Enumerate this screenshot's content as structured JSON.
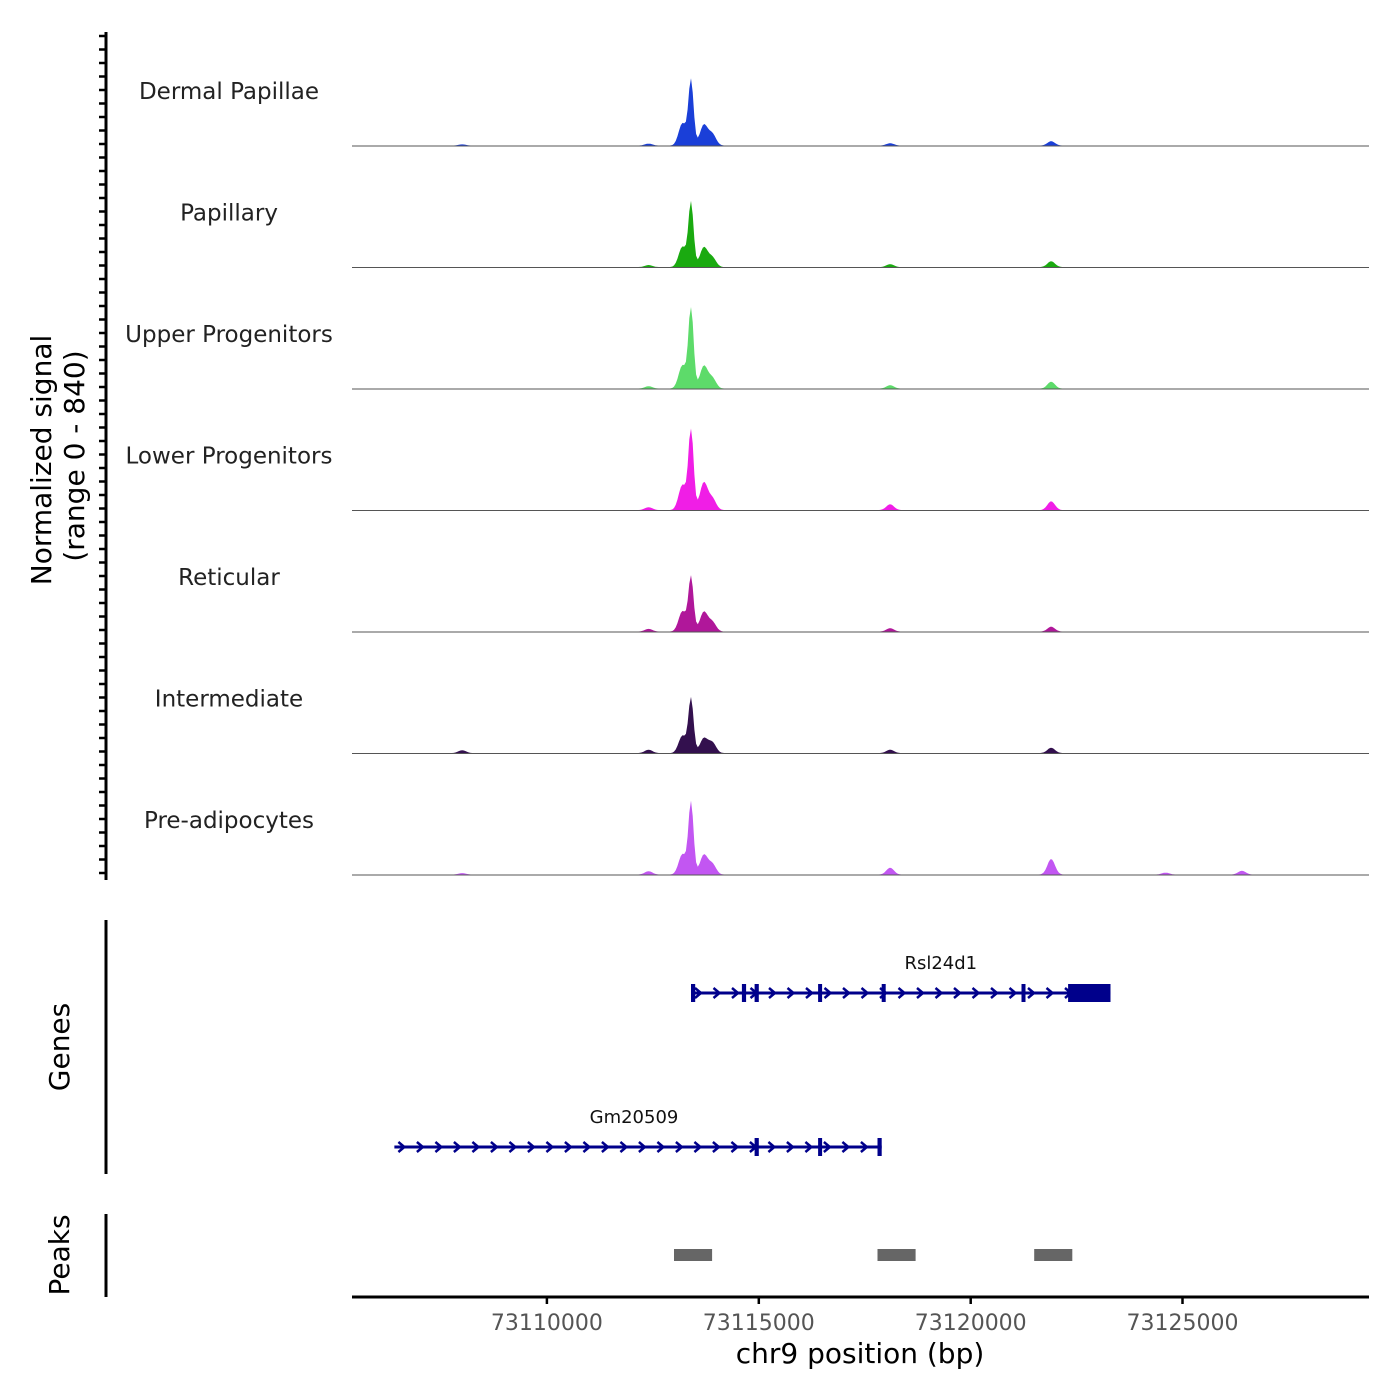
{
  "chart_data": {
    "type": "area",
    "ylabel": "Normalized signal",
    "ylabel_range": "(range 0 - 840)",
    "ylim": [
      0,
      840
    ],
    "xlabel": "chr9 position (bp)",
    "xlim": [
      73105400,
      73129400
    ],
    "xticks": [
      73110000,
      73115000,
      73120000,
      73125000
    ],
    "xtick_labels": [
      "73110000",
      "73115000",
      "73120000",
      "73125000"
    ],
    "tracks": [
      {
        "name": "Dermal Papillae",
        "color": "#1a3fd8",
        "peaks": [
          [
            73113400,
            670
          ],
          [
            73113700,
            210
          ],
          [
            73113200,
            230
          ],
          [
            73113900,
            120
          ],
          [
            73118100,
            25
          ],
          [
            73121900,
            45
          ],
          [
            73108000,
            12
          ],
          [
            73112400,
            20
          ]
        ]
      },
      {
        "name": "Papillary",
        "color": "#1aaa10",
        "peaks": [
          [
            73113400,
            660
          ],
          [
            73113700,
            200
          ],
          [
            73113200,
            210
          ],
          [
            73113900,
            100
          ],
          [
            73118100,
            30
          ],
          [
            73121900,
            60
          ],
          [
            73112400,
            22
          ]
        ]
      },
      {
        "name": "Upper Progenitors",
        "color": "#5ddb6a",
        "peaks": [
          [
            73113400,
            840
          ],
          [
            73113700,
            230
          ],
          [
            73113200,
            240
          ],
          [
            73113900,
            110
          ],
          [
            73118100,
            35
          ],
          [
            73121900,
            70
          ],
          [
            73112400,
            25
          ]
        ]
      },
      {
        "name": "Lower Progenitors",
        "color": "#f01ee6",
        "peaks": [
          [
            73113400,
            840
          ],
          [
            73113700,
            280
          ],
          [
            73113200,
            260
          ],
          [
            73113900,
            120
          ],
          [
            73118100,
            60
          ],
          [
            73121900,
            90
          ],
          [
            73112400,
            30
          ]
        ]
      },
      {
        "name": "Reticular",
        "color": "#b0179a",
        "peaks": [
          [
            73113400,
            560
          ],
          [
            73113700,
            200
          ],
          [
            73113200,
            210
          ],
          [
            73113900,
            100
          ],
          [
            73118100,
            35
          ],
          [
            73121900,
            50
          ],
          [
            73112400,
            28
          ]
        ]
      },
      {
        "name": "Intermediate",
        "color": "#33104e",
        "peaks": [
          [
            73113400,
            560
          ],
          [
            73113700,
            150
          ],
          [
            73113200,
            180
          ],
          [
            73113900,
            110
          ],
          [
            73118100,
            35
          ],
          [
            73121900,
            55
          ],
          [
            73108000,
            30
          ],
          [
            73112400,
            35
          ]
        ]
      },
      {
        "name": "Pre-adipocytes",
        "color": "#c256f2",
        "peaks": [
          [
            73113400,
            740
          ],
          [
            73113700,
            200
          ],
          [
            73113200,
            210
          ],
          [
            73113900,
            110
          ],
          [
            73118100,
            70
          ],
          [
            73121900,
            160
          ],
          [
            73126400,
            40
          ],
          [
            73112400,
            35
          ],
          [
            73108000,
            15
          ],
          [
            73124600,
            20
          ]
        ]
      }
    ],
    "genes": [
      {
        "name": "Rsl24d1",
        "start": 73113400,
        "end": 73123300,
        "strand": "+",
        "exons": [
          [
            73113400,
            73113500
          ],
          [
            73114600,
            73114700
          ],
          [
            73114900,
            73115000
          ],
          [
            73116400,
            73116450
          ],
          [
            73117900,
            73117950
          ],
          [
            73121200,
            73121250
          ],
          [
            73122300,
            73123300
          ]
        ]
      },
      {
        "name": "Gm20509",
        "start": 73106400,
        "end": 73117900,
        "strand": "+",
        "exons": [
          [
            73114900,
            73115000
          ],
          [
            73116400,
            73116450
          ],
          [
            73117800,
            73117900
          ]
        ]
      }
    ],
    "peaks_track": [
      [
        73113000,
        73113900
      ],
      [
        73117800,
        73118700
      ],
      [
        73121500,
        73122400
      ]
    ],
    "peak_color": "#666666",
    "gene_color": "#00008b",
    "side_labels": {
      "genes": "Genes",
      "peaks": "Peaks"
    }
  }
}
